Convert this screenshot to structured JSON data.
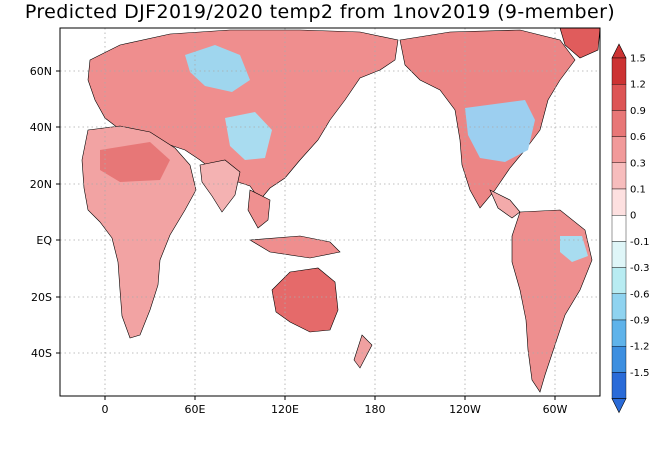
{
  "title": "Predicted DJF2019/2020 temp2 from 1nov2019 (9-member)",
  "lat_ticks": [
    "60N",
    "40N",
    "20N",
    "EQ",
    "20S",
    "40S"
  ],
  "lon_ticks": [
    "0",
    "60E",
    "120E",
    "180",
    "120W",
    "60W"
  ],
  "colorbar": {
    "labels": [
      "1.5",
      "1.2",
      "0.9",
      "0.6",
      "0.3",
      "0.1",
      "0",
      "-0.1",
      "-0.3",
      "-0.6",
      "-0.9",
      "-1.2",
      "-1.5"
    ],
    "colors": [
      "#cc3333",
      "#dd5555",
      "#e87777",
      "#f19a9a",
      "#f7bdbd",
      "#fde0e0",
      "#ffffff",
      "#dff6f8",
      "#b8ecf2",
      "#8fd3f0",
      "#5fb3ea",
      "#3d8fe0",
      "#2a6bd8"
    ]
  }
}
